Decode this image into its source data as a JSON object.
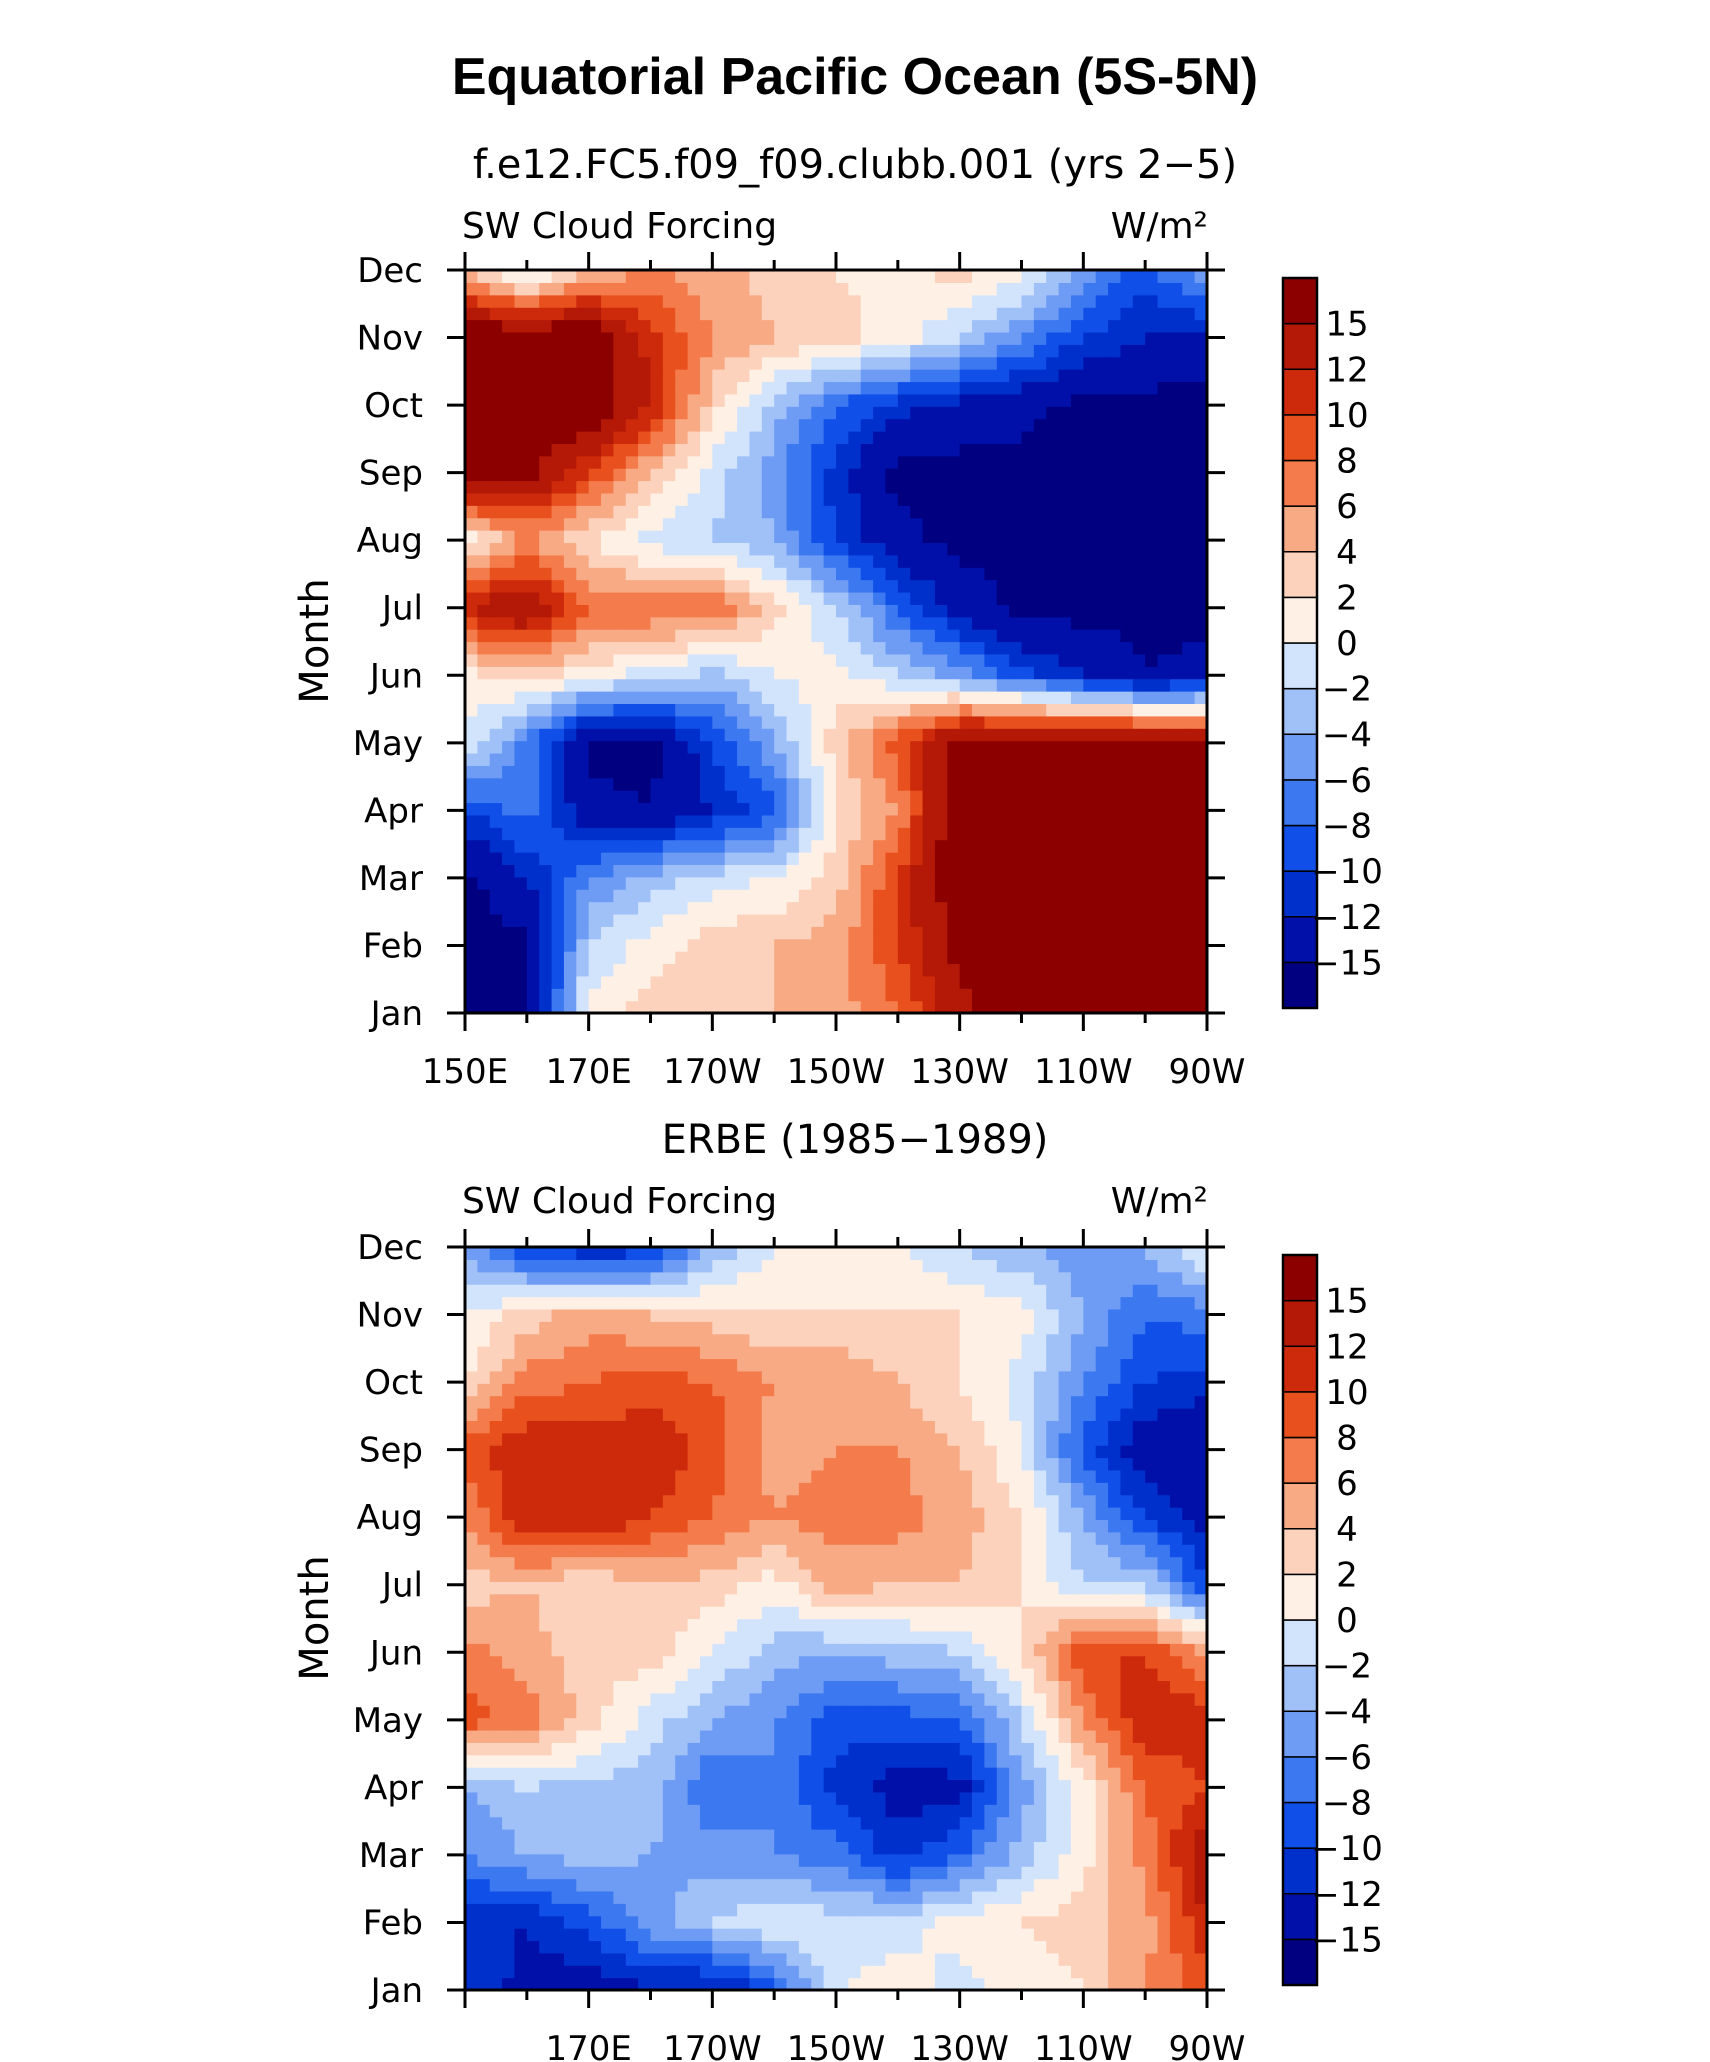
{
  "title": "Equatorial Pacific Ocean (5S-5N)",
  "colorbar": {
    "labels": [
      "15",
      "12",
      "10",
      "8",
      "6",
      "4",
      "2",
      "0",
      "−2",
      "−4",
      "−6",
      "−8",
      "−10",
      "−12",
      "−15"
    ],
    "colors": [
      "#000080",
      "#0010a8",
      "#0030cc",
      "#1050e8",
      "#3c78f0",
      "#6e9cf4",
      "#a0c0f8",
      "#d2e4fc",
      "#fff0e6",
      "#fcd2bc",
      "#f8aa84",
      "#f47c4c",
      "#e8501e",
      "#cc2a0a",
      "#b41806",
      "#8c0000"
    ]
  },
  "chart_data": [
    {
      "type": "heatmap",
      "title": "f.e12.FC5.f09_f09.clubb.001 (yrs 2−5)",
      "left_label": "SW Cloud Forcing",
      "right_label": "W/m²",
      "ylabel": "Month",
      "x_tick_labels": [
        "150E",
        "170E",
        "170W",
        "150W",
        "130W",
        "110W",
        "90W"
      ],
      "y_tick_labels": [
        "Jan",
        "Feb",
        "Mar",
        "Apr",
        "May",
        "Jun",
        "Jul",
        "Aug",
        "Sep",
        "Oct",
        "Nov",
        "Dec"
      ],
      "x": [
        "150E",
        "160E",
        "170E",
        "180",
        "170W",
        "160W",
        "150W",
        "140W",
        "130W",
        "120W",
        "110W",
        "100W",
        "90W"
      ],
      "y": [
        "Jan",
        "Feb",
        "Mar",
        "Apr",
        "May",
        "Jun",
        "Jul",
        "Aug",
        "Sep",
        "Oct",
        "Nov",
        "Dec"
      ],
      "z": [
        [
          -16,
          -16,
          1,
          3,
          4,
          4,
          5,
          8,
          14,
          18,
          18,
          18,
          18
        ],
        [
          -16,
          -16,
          -2,
          1,
          3,
          4,
          5,
          10,
          16,
          18,
          18,
          18,
          18
        ],
        [
          -16,
          -12,
          -6,
          -3,
          -1,
          0,
          3,
          10,
          18,
          18,
          18,
          18,
          18
        ],
        [
          -10,
          -7,
          -14,
          -15,
          -12,
          -9,
          2,
          6,
          18,
          18,
          18,
          18,
          18
        ],
        [
          0,
          -7,
          -16,
          -16,
          -10,
          -4,
          3,
          9,
          17,
          18,
          18,
          18,
          17
        ],
        [
          1,
          3,
          1,
          -1,
          -3,
          0,
          1,
          -2,
          -5,
          -9,
          -12,
          -15,
          -14
        ],
        [
          12,
          15,
          8,
          8,
          8,
          3,
          -2,
          -8,
          -13,
          -16,
          -16,
          -16,
          -16
        ],
        [
          0,
          6,
          2,
          -1,
          -2,
          -4,
          -10,
          -14,
          -16,
          -16,
          -16,
          -16,
          -16
        ],
        [
          17,
          16,
          10,
          4,
          -1,
          -5,
          -11,
          -16,
          -16,
          -16,
          -16,
          -16,
          -16
        ],
        [
          18,
          18,
          18,
          12,
          3,
          -3,
          -8,
          -11,
          -13,
          -14,
          -16,
          -16,
          -16
        ],
        [
          18,
          18,
          18,
          11,
          6,
          4,
          3,
          1,
          -2,
          -6,
          -10,
          -12,
          -13
        ],
        [
          4,
          -2,
          4,
          6,
          5,
          3,
          2,
          1,
          3,
          1,
          -5,
          -9,
          -4
        ]
      ],
      "zlim": [
        -16,
        18
      ]
    },
    {
      "type": "heatmap",
      "title": "ERBE (1985−1989)",
      "left_label": "SW Cloud Forcing",
      "right_label": "W/m²",
      "ylabel": "Month",
      "x_tick_labels": [
        "170E",
        "170W",
        "150W",
        "130W",
        "110W",
        "90W"
      ],
      "y_tick_labels": [
        "Jan",
        "Feb",
        "Mar",
        "Apr",
        "May",
        "Jun",
        "Jul",
        "Aug",
        "Sep",
        "Oct",
        "Nov",
        "Dec"
      ],
      "x": [
        "150E",
        "160E",
        "170E",
        "180",
        "170W",
        "160W",
        "150W",
        "140W",
        "130W",
        "120W",
        "110W",
        "100W",
        "90W"
      ],
      "y": [
        "Jan",
        "Feb",
        "Mar",
        "Apr",
        "May",
        "Jun",
        "Jul",
        "Aug",
        "Sep",
        "Oct",
        "Nov",
        "Dec"
      ],
      "z": [
        [
          -10,
          -13,
          -14,
          -12,
          -13,
          -9,
          0,
          1,
          -1,
          1,
          2,
          6,
          9
        ],
        [
          -11,
          -12,
          -9,
          -5,
          -2,
          0,
          -1,
          -1,
          1,
          2,
          3,
          5,
          12
        ],
        [
          -6,
          -4,
          -3,
          -4,
          -5,
          -6,
          -7,
          -11,
          -8,
          -3,
          1,
          7,
          14
        ],
        [
          -4,
          -2,
          -3,
          -3,
          -8,
          -6,
          -11,
          -13,
          -13,
          -5,
          1,
          8,
          10
        ],
        [
          9,
          7,
          3,
          -1,
          -4,
          -6,
          -9,
          -9,
          -8,
          -2,
          6,
          12,
          11
        ],
        [
          7,
          5,
          3,
          3,
          0,
          -3,
          -4,
          -3,
          -2,
          2,
          10,
          10,
          6
        ],
        [
          3,
          4,
          2,
          4,
          3,
          1,
          5,
          4,
          4,
          2,
          -2,
          -2,
          -10
        ],
        [
          6,
          12,
          12,
          10,
          8,
          6,
          7,
          7,
          5,
          2,
          -4,
          -10,
          -13
        ],
        [
          9,
          12,
          11,
          12,
          9,
          5,
          6,
          6,
          4,
          0,
          -9,
          -14,
          -15
        ],
        [
          2,
          7,
          8,
          9,
          8,
          6,
          6,
          4,
          2,
          -1,
          -6,
          -10,
          -11
        ],
        [
          0,
          3,
          5,
          4,
          3,
          2,
          2,
          2,
          2,
          1,
          -4,
          -8,
          -7
        ],
        [
          -5,
          -10,
          -12,
          -11,
          -4,
          0,
          1,
          0,
          -2,
          -4,
          -5,
          -4,
          1
        ]
      ],
      "zlim": [
        -16,
        18
      ]
    }
  ]
}
